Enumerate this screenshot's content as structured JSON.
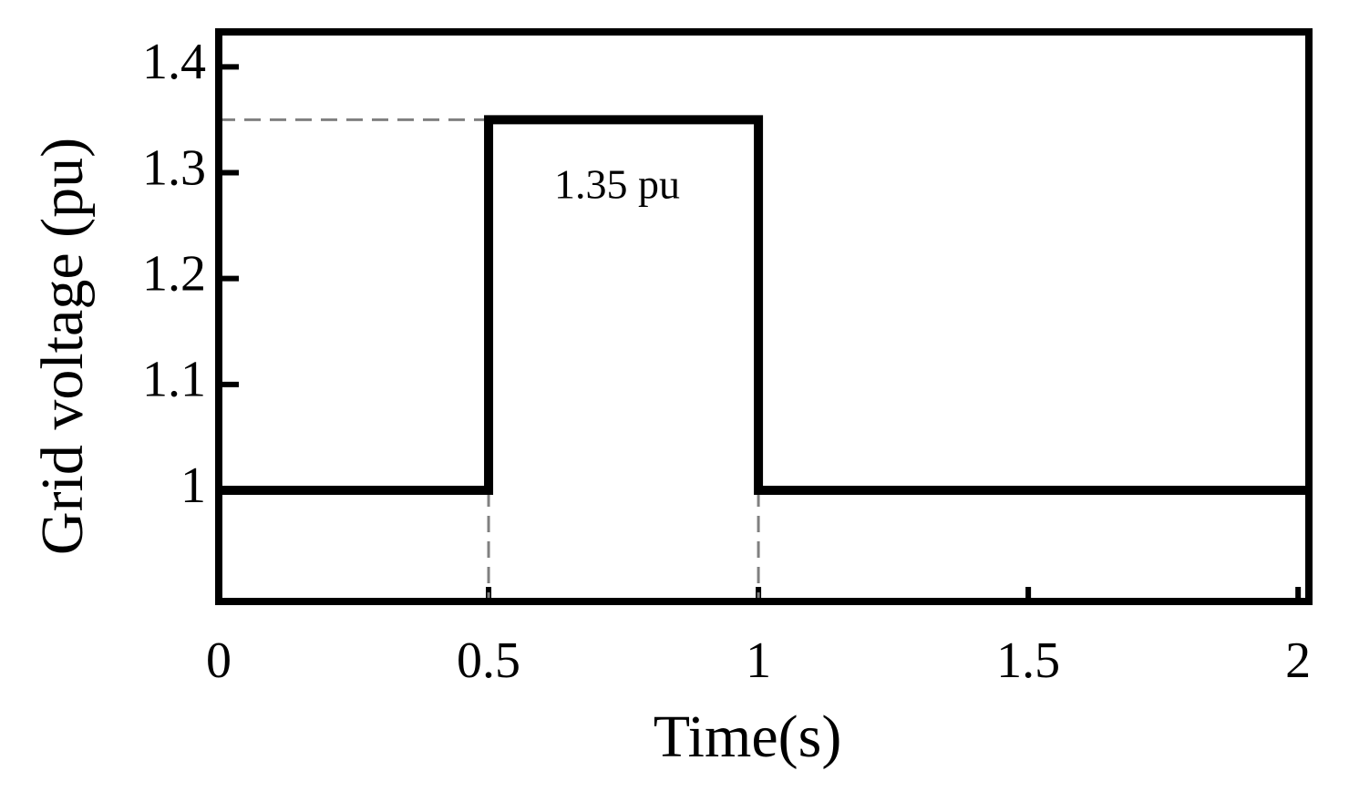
{
  "chart_data": {
    "type": "line",
    "x_label": "Time(s)",
    "y_label": "Grid voltage (pu)",
    "annotations": [
      "1.35 pu"
    ],
    "xlim": [
      0,
      2.02
    ],
    "ylim": [
      0.895,
      1.433
    ],
    "xticks": [
      0,
      0.5,
      1,
      1.5,
      2
    ],
    "yticks": [
      1,
      1.1,
      1.2,
      1.3,
      1.4
    ],
    "series": [
      {
        "color": "#000000",
        "x": [
          0,
          0.5,
          0.5,
          1,
          1,
          2.02
        ],
        "values": [
          1,
          1,
          1.35,
          1.35,
          1,
          1
        ]
      }
    ],
    "reference_line_color": "#808080"
  }
}
